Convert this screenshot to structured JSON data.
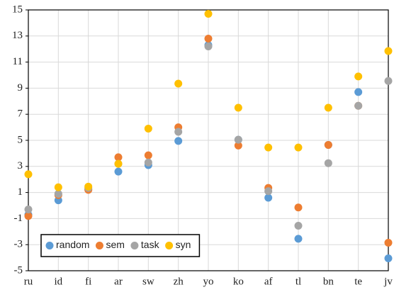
{
  "chart_data": {
    "type": "scatter",
    "categories": [
      "ru",
      "id",
      "fi",
      "ar",
      "sw",
      "zh",
      "yo",
      "ko",
      "af",
      "tl",
      "bn",
      "te",
      "jv"
    ],
    "series": [
      {
        "name": "random",
        "color": "#5b9bd5",
        "values": [
          -0.7,
          0.4,
          1.25,
          2.6,
          3.1,
          4.95,
          12.3,
          5.05,
          0.6,
          -2.55,
          4.65,
          8.7,
          -4.05
        ]
      },
      {
        "name": "sem",
        "color": "#ed7d31",
        "values": [
          -0.8,
          0.8,
          1.2,
          3.7,
          3.85,
          6.0,
          12.8,
          4.6,
          1.35,
          -0.15,
          4.65,
          7.65,
          -2.85
        ]
      },
      {
        "name": "task",
        "color": "#a5a5a5",
        "values": [
          -0.3,
          0.9,
          1.35,
          3.2,
          3.3,
          5.65,
          12.2,
          5.05,
          1.1,
          -1.55,
          3.25,
          7.65,
          9.55
        ]
      },
      {
        "name": "syn",
        "color": "#ffc000",
        "values": [
          2.4,
          1.4,
          1.45,
          3.2,
          5.9,
          9.35,
          14.7,
          7.5,
          4.45,
          4.45,
          7.5,
          9.9,
          11.85
        ]
      }
    ],
    "ylim": [
      -5,
      15
    ],
    "yticks": [
      -5,
      -3,
      -1,
      1,
      3,
      5,
      7,
      9,
      11,
      13,
      15
    ],
    "grid": true,
    "legend": "lower left"
  }
}
